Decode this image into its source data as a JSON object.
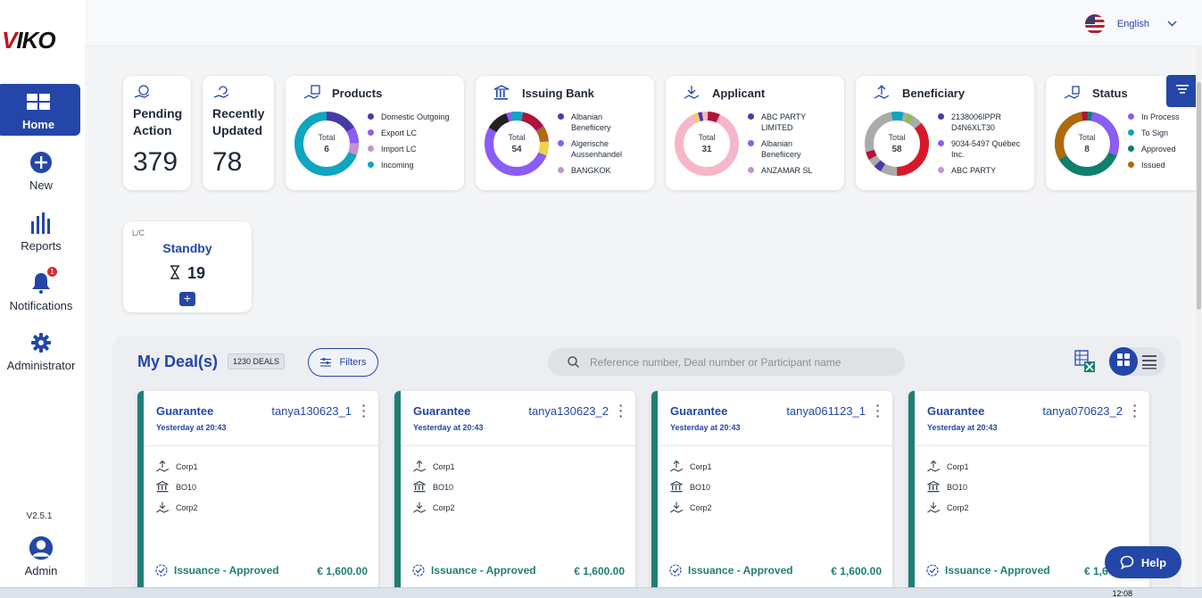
{
  "brand": {
    "logo_text": "IKO",
    "logo_mark": "V",
    "accent": "#2346a8",
    "teal": "#1f7f73"
  },
  "sidebar": {
    "items": [
      {
        "label": "Home",
        "icon": "home-grid-icon"
      },
      {
        "label": "New",
        "icon": "plus-circle-icon"
      },
      {
        "label": "Reports",
        "icon": "bar-chart-icon"
      },
      {
        "label": "Notifications",
        "icon": "bell-icon",
        "badge": "1"
      },
      {
        "label": "Administrator",
        "icon": "gear-icon"
      }
    ],
    "version": "V2.5.1",
    "user": {
      "label": "Admin",
      "icon": "user-avatar-icon"
    }
  },
  "topbar": {
    "language": "English",
    "flag": "us-flag-icon"
  },
  "stats": {
    "pending": {
      "label_1": "Pending",
      "label_2": "Action",
      "value": "379"
    },
    "updated": {
      "label_1": "Recently",
      "label_2": "Updated",
      "value": "78"
    }
  },
  "donut_cards": {
    "products": {
      "title": "Products",
      "total_label": "Total",
      "total": "6",
      "legend": [
        {
          "label": "Domestic Outgoing",
          "color": "#4b3aa6"
        },
        {
          "label": "Export LC",
          "color": "#8b5cf6"
        },
        {
          "label": "Import LC",
          "color": "#c792d4"
        },
        {
          "label": "Incoming",
          "color": "#10a5c0"
        }
      ]
    },
    "issuing_bank": {
      "title": "Issuing Bank",
      "total_label": "Total",
      "total": "54",
      "legend": [
        {
          "label": "Albanian Benefiicery",
          "color": "#4b3aa6"
        },
        {
          "label": "Algerische Aussenhandel",
          "color": "#8b5cf6"
        },
        {
          "label": "BANGKOK",
          "color": "#c792d4"
        }
      ]
    },
    "applicant": {
      "title": "Applicant",
      "total_label": "Total",
      "total": "31",
      "legend": [
        {
          "label": "ABC PARTY LIMITED",
          "color": "#4b3aa6"
        },
        {
          "label": "Albanian Benefiicery",
          "color": "#8b5cf6"
        },
        {
          "label": "ANZAMAR SL",
          "color": "#c792d4"
        }
      ]
    },
    "beneficiary": {
      "title": "Beneficiary",
      "total_label": "Total",
      "total": "58",
      "legend": [
        {
          "label": "2138006IPPR D4N6XLT30",
          "color": "#4b3aa6"
        },
        {
          "label": "9034-5497 Québec Inc.",
          "color": "#8b5cf6"
        },
        {
          "label": "ABC PARTY",
          "color": "#c792d4"
        }
      ]
    },
    "status": {
      "title": "Status",
      "total_label": "Total",
      "total": "8",
      "legend": [
        {
          "label": "In Process",
          "color": "#8b5cf6"
        },
        {
          "label": "To Sign",
          "color": "#10a5c0"
        },
        {
          "label": "Approved",
          "color": "#0f7f6e"
        },
        {
          "label": "Issued",
          "color": "#b06a0a"
        }
      ]
    }
  },
  "standby": {
    "category": "L/C",
    "title": "Standby",
    "count": "19"
  },
  "deals": {
    "title": "My Deal(s)",
    "count": "1230 DEALS",
    "filters_label": "Filters",
    "search_placeholder": "Reference number, Deal number or Participant name",
    "cards": [
      {
        "type": "Guarantee",
        "ref": "tanya130623_1",
        "date": "Yesterday at 20:43",
        "beneficiary": "Corp1",
        "bank": "BO10",
        "applicant": "Corp2",
        "status": "Issuance - Approved",
        "amount": "€ 1,600.00"
      },
      {
        "type": "Guarantee",
        "ref": "tanya130623_2",
        "date": "Yesterday at 20:43",
        "beneficiary": "Corp1",
        "bank": "BO10",
        "applicant": "Corp2",
        "status": "Issuance - Approved",
        "amount": "€ 1,600.00"
      },
      {
        "type": "Guarantee",
        "ref": "tanya061123_1",
        "date": "Yesterday at 20:43",
        "beneficiary": "Corp1",
        "bank": "BO10",
        "applicant": "Corp2",
        "status": "Issuance - Approved",
        "amount": "€ 1,600.00"
      },
      {
        "type": "Guarantee",
        "ref": "tanya070623_2",
        "date": "Yesterday at 20:43",
        "beneficiary": "Corp1",
        "bank": "BO10",
        "applicant": "Corp2",
        "status": "Issuance - Approved",
        "amount": "€ 1,6"
      }
    ]
  },
  "help": {
    "label": "Help"
  },
  "taskbar": {
    "clock": "12:08"
  }
}
